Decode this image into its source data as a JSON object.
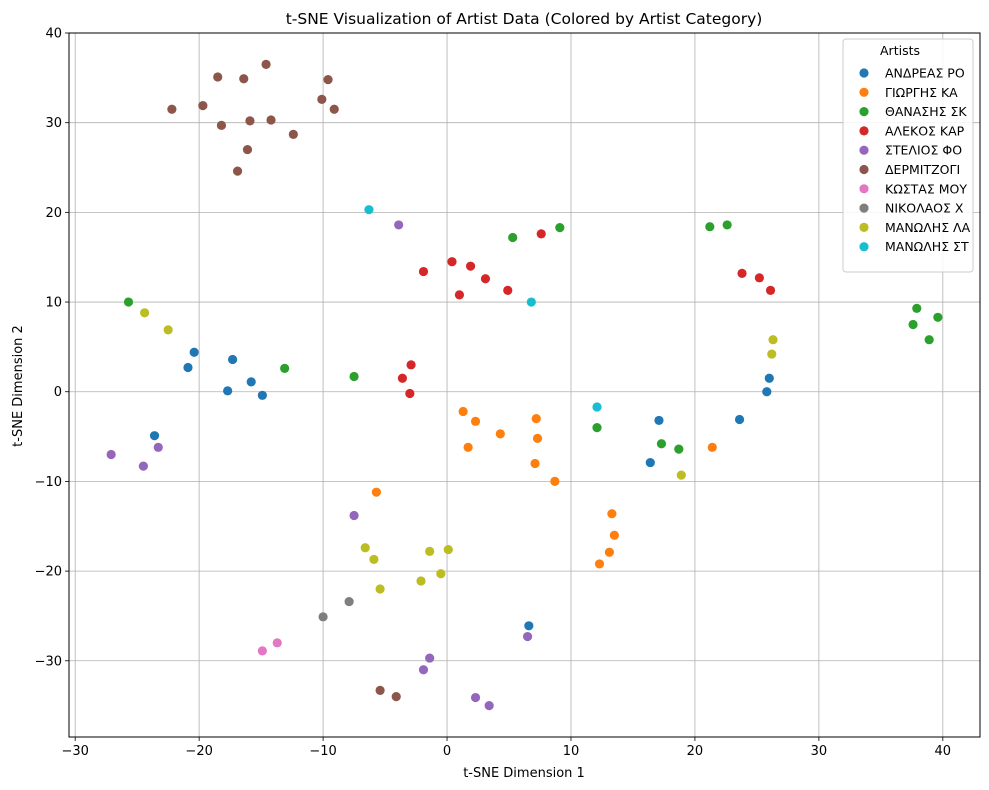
{
  "chart_data": {
    "type": "scatter",
    "title": "t-SNE Visualization of Artist Data (Colored by Artist Category)",
    "xlabel": "t-SNE Dimension 1",
    "ylabel": "t-SNE Dimension 2",
    "xlim": [
      -30.5,
      43
    ],
    "ylim": [
      -38.5,
      40
    ],
    "xticks": [
      -30,
      -20,
      -10,
      0,
      10,
      20,
      30,
      40
    ],
    "yticks": [
      -30,
      -20,
      -10,
      0,
      10,
      20,
      30,
      40
    ],
    "grid": true,
    "legend": {
      "title": "Artists",
      "placement": "top-right"
    },
    "series": [
      {
        "name": "ΑΝΔΡΕΑΣ ΡΟ",
        "color": "#1f77b4",
        "points": [
          [
            -20.4,
            4.4
          ],
          [
            -20.9,
            2.7
          ],
          [
            -17.3,
            3.6
          ],
          [
            -15.8,
            1.1
          ],
          [
            -17.7,
            0.1
          ],
          [
            -14.9,
            -0.4
          ],
          [
            -23.6,
            -4.9
          ],
          [
            6.6,
            -26.1
          ],
          [
            17.1,
            -3.2
          ],
          [
            16.4,
            -7.9
          ],
          [
            23.6,
            -3.1
          ],
          [
            25.8,
            0.0
          ],
          [
            26.0,
            1.5
          ]
        ]
      },
      {
        "name": "ΓΙΩΡΓΗΣ ΚΑ",
        "color": "#ff7f0e",
        "points": [
          [
            1.3,
            -2.2
          ],
          [
            2.3,
            -3.3
          ],
          [
            1.7,
            -6.2
          ],
          [
            4.3,
            -4.7
          ],
          [
            7.2,
            -3.0
          ],
          [
            7.3,
            -5.2
          ],
          [
            7.1,
            -8.0
          ],
          [
            8.7,
            -10.0
          ],
          [
            -5.7,
            -11.2
          ],
          [
            21.4,
            -6.2
          ],
          [
            13.3,
            -13.6
          ],
          [
            13.5,
            -16.0
          ],
          [
            13.1,
            -17.9
          ],
          [
            12.3,
            -19.2
          ]
        ]
      },
      {
        "name": "ΘΑΝΑΣΗΣ ΣΚ",
        "color": "#2ca02c",
        "points": [
          [
            -25.7,
            10.0
          ],
          [
            -13.1,
            2.6
          ],
          [
            -7.5,
            1.7
          ],
          [
            5.3,
            17.2
          ],
          [
            9.1,
            18.3
          ],
          [
            21.2,
            18.4
          ],
          [
            22.6,
            18.6
          ],
          [
            12.1,
            -4.0
          ],
          [
            17.3,
            -5.8
          ],
          [
            18.7,
            -6.4
          ],
          [
            37.6,
            7.5
          ],
          [
            37.9,
            9.3
          ],
          [
            39.6,
            8.3
          ],
          [
            38.9,
            5.8
          ]
        ]
      },
      {
        "name": "ΑΛΕΚΟΣ ΚΑΡ",
        "color": "#d62728",
        "points": [
          [
            -1.9,
            13.4
          ],
          [
            0.4,
            14.5
          ],
          [
            1.9,
            14.0
          ],
          [
            3.1,
            12.6
          ],
          [
            1.0,
            10.8
          ],
          [
            4.9,
            11.3
          ],
          [
            7.6,
            17.6
          ],
          [
            -3.6,
            1.5
          ],
          [
            -2.9,
            3.0
          ],
          [
            -3.0,
            -0.2
          ],
          [
            23.8,
            13.2
          ],
          [
            25.2,
            12.7
          ],
          [
            26.1,
            11.3
          ]
        ]
      },
      {
        "name": "ΣΤΕΛΙΟΣ ΦΟ",
        "color": "#9467bd",
        "points": [
          [
            -3.9,
            18.6
          ],
          [
            -27.1,
            -7.0
          ],
          [
            -24.5,
            -8.3
          ],
          [
            -23.3,
            -6.2
          ],
          [
            -7.5,
            -13.8
          ],
          [
            -1.4,
            -29.7
          ],
          [
            -1.9,
            -31.0
          ],
          [
            2.3,
            -34.1
          ],
          [
            3.4,
            -35.0
          ],
          [
            6.5,
            -27.3
          ]
        ]
      },
      {
        "name": "ΔΕΡΜΙΤΖΟΓΙ",
        "color": "#8c564b",
        "points": [
          [
            -22.2,
            31.5
          ],
          [
            -19.7,
            31.9
          ],
          [
            -18.5,
            35.1
          ],
          [
            -18.2,
            29.7
          ],
          [
            -16.4,
            34.9
          ],
          [
            -15.9,
            30.2
          ],
          [
            -14.6,
            36.5
          ],
          [
            -14.2,
            30.3
          ],
          [
            -16.1,
            27.0
          ],
          [
            -16.9,
            24.6
          ],
          [
            -12.4,
            28.7
          ],
          [
            -10.1,
            32.6
          ],
          [
            -9.6,
            34.8
          ],
          [
            -9.1,
            31.5
          ],
          [
            -5.4,
            -33.3
          ],
          [
            -4.1,
            -34.0
          ]
        ]
      },
      {
        "name": "ΚΩΣΤΑΣ ΜΟΥ",
        "color": "#e377c2",
        "points": [
          [
            -14.9,
            -28.9
          ],
          [
            -13.7,
            -28.0
          ]
        ]
      },
      {
        "name": "ΝΙΚΟΛΑΟΣ Χ",
        "color": "#7f7f7f",
        "points": [
          [
            -10.0,
            -25.1
          ],
          [
            -7.9,
            -23.4
          ]
        ]
      },
      {
        "name": "ΜΑΝΩΛΗΣ ΛΑ",
        "color": "#bcbd22",
        "points": [
          [
            -24.4,
            8.8
          ],
          [
            -22.5,
            6.9
          ],
          [
            -6.6,
            -17.4
          ],
          [
            -5.9,
            -18.7
          ],
          [
            -5.4,
            -22.0
          ],
          [
            -1.4,
            -17.8
          ],
          [
            0.1,
            -17.6
          ],
          [
            -0.5,
            -20.3
          ],
          [
            -2.1,
            -21.1
          ],
          [
            18.9,
            -9.3
          ],
          [
            26.2,
            4.2
          ],
          [
            26.3,
            5.8
          ]
        ]
      },
      {
        "name": "ΜΑΝΩΛΗΣ ΣΤ",
        "color": "#17becf",
        "points": [
          [
            -6.3,
            20.3
          ],
          [
            6.8,
            10.0
          ],
          [
            12.1,
            -1.7
          ]
        ]
      }
    ]
  }
}
